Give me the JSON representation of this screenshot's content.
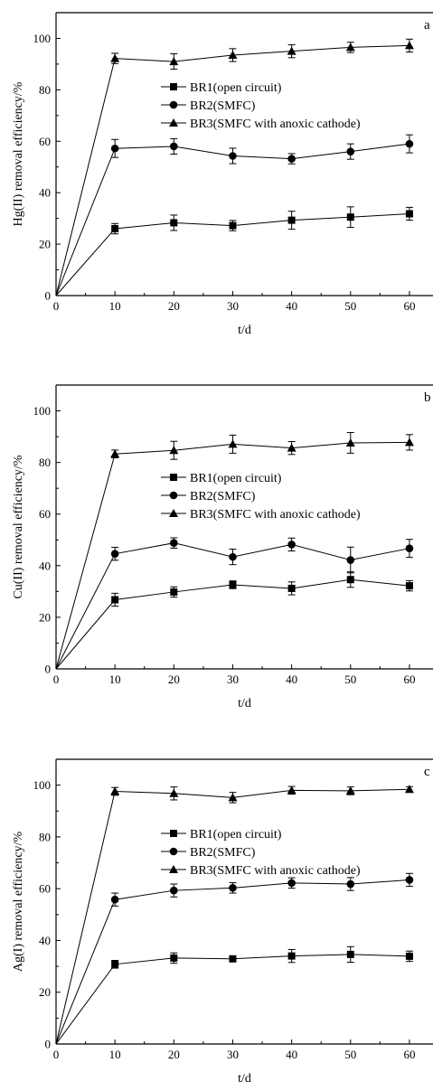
{
  "figure": {
    "x_axis_label": "t/d"
  },
  "chart_data": [
    {
      "type": "line",
      "panel_label": "a",
      "xlabel": "t/d",
      "ylabel": "Hg(II) removal efficiency/%",
      "xlim": [
        0,
        64
      ],
      "ylim": [
        0,
        110
      ],
      "x_ticks": [
        "0",
        "10",
        "20",
        "30",
        "40",
        "50",
        "60"
      ],
      "y_ticks": [
        "0",
        "20",
        "40",
        "60",
        "80",
        "100"
      ],
      "x": [
        0,
        10,
        20,
        30,
        40,
        50,
        60
      ],
      "legend_position": "center-right",
      "grid": false,
      "series": [
        {
          "name": "BR1(open circuit)",
          "marker": "square",
          "values": [
            0,
            26,
            28.3,
            27.2,
            29.3,
            30.5,
            31.8
          ],
          "errors": [
            0,
            2,
            3,
            2,
            3.5,
            4,
            2.5
          ]
        },
        {
          "name": "BR2(SMFC)",
          "marker": "circle",
          "values": [
            0,
            57.2,
            58,
            54.3,
            53.2,
            56,
            59
          ],
          "errors": [
            0,
            3.5,
            3,
            3,
            2,
            3,
            3.5
          ]
        },
        {
          "name": "BR3(SMFC with anoxic cathode)",
          "marker": "triangle",
          "values": [
            0,
            92.2,
            91,
            93.5,
            95,
            96.5,
            97.2
          ],
          "errors": [
            0,
            2,
            3,
            2.5,
            2.5,
            2,
            2.5
          ]
        }
      ]
    },
    {
      "type": "line",
      "panel_label": "b",
      "xlabel": "t/d",
      "ylabel": "Cu(II) removal efficiency/%",
      "xlim": [
        0,
        64
      ],
      "ylim": [
        0,
        110
      ],
      "x_ticks": [
        "0",
        "10",
        "20",
        "30",
        "40",
        "50",
        "60"
      ],
      "y_ticks": [
        "0",
        "20",
        "40",
        "60",
        "80",
        "100"
      ],
      "x": [
        0,
        10,
        20,
        30,
        40,
        50,
        60
      ],
      "legend_position": "center-right",
      "grid": false,
      "series": [
        {
          "name": "BR1(open circuit)",
          "marker": "square",
          "values": [
            0,
            26.8,
            29.8,
            32.6,
            31.2,
            34.6,
            32.2
          ],
          "errors": [
            0,
            2.5,
            2,
            1.5,
            2.5,
            3,
            2
          ]
        },
        {
          "name": "BR2(SMFC)",
          "marker": "circle",
          "values": [
            0,
            44.6,
            48.8,
            43.4,
            48.2,
            42.2,
            46.7
          ],
          "errors": [
            0,
            2.5,
            2,
            3,
            2.5,
            5,
            3.5
          ]
        },
        {
          "name": "BR3(SMFC with anoxic cathode)",
          "marker": "triangle",
          "values": [
            0,
            83.3,
            84.7,
            87.1,
            85.6,
            87.6,
            87.8
          ],
          "errors": [
            0,
            1.5,
            3.5,
            3.5,
            2.5,
            4,
            3
          ]
        }
      ]
    },
    {
      "type": "line",
      "panel_label": "c",
      "xlabel": "t/d",
      "ylabel": "Ag(I) removal efficiency/%",
      "xlim": [
        0,
        64
      ],
      "ylim": [
        0,
        110
      ],
      "x_ticks": [
        "0",
        "10",
        "20",
        "30",
        "40",
        "50",
        "60"
      ],
      "y_ticks": [
        "0",
        "20",
        "40",
        "60",
        "80",
        "100"
      ],
      "x": [
        0,
        10,
        20,
        30,
        40,
        50,
        60
      ],
      "legend_position": "center-right",
      "grid": false,
      "series": [
        {
          "name": "BR1(open circuit)",
          "marker": "square",
          "values": [
            0,
            30.8,
            33.2,
            32.9,
            34,
            34.6,
            33.9
          ],
          "errors": [
            0,
            1.5,
            2,
            1,
            2.5,
            3,
            2
          ]
        },
        {
          "name": "BR2(SMFC)",
          "marker": "circle",
          "values": [
            0,
            55.8,
            59.3,
            60.3,
            62.2,
            61.8,
            63.4
          ],
          "errors": [
            0,
            2.5,
            2.5,
            2,
            2,
            2.5,
            2.5
          ]
        },
        {
          "name": "BR3(SMFC with anoxic cathode)",
          "marker": "triangle",
          "values": [
            0,
            97.6,
            96.8,
            95.2,
            98,
            97.8,
            98.4
          ],
          "errors": [
            0,
            1.5,
            2.5,
            2,
            1.5,
            1.5,
            1
          ]
        }
      ]
    }
  ]
}
